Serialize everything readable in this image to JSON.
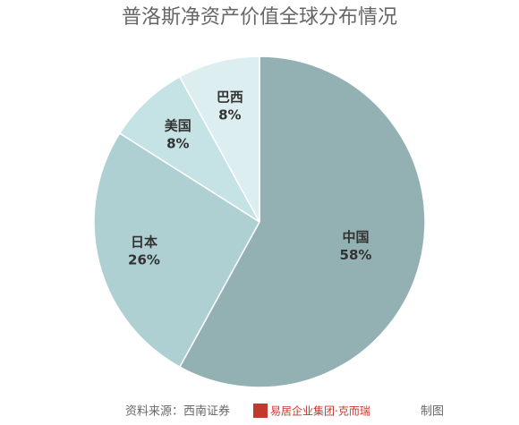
{
  "chart_data": {
    "type": "pie",
    "title": "普洛斯净资产价值全球分布情况",
    "categories": [
      "中国",
      "日本",
      "美国",
      "巴西"
    ],
    "values": [
      58,
      26,
      8,
      8
    ],
    "value_labels": [
      "58%",
      "26%",
      "8%",
      "8%"
    ],
    "colors": [
      "#93b0b2",
      "#aed0d3",
      "#c5e2e4",
      "#ddeef0"
    ],
    "source": "资料来源：西南证券",
    "credit": "易居企业集团·克而瑞",
    "credit_suffix": "制图"
  }
}
